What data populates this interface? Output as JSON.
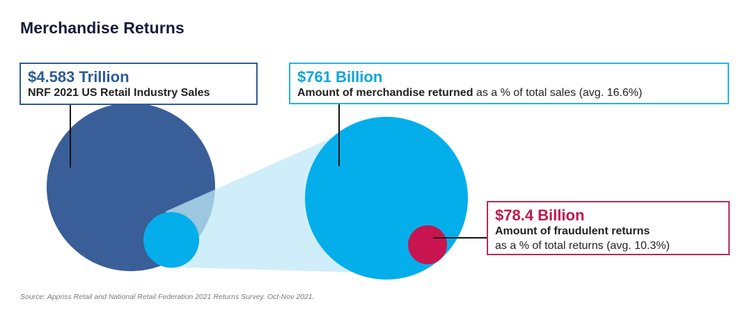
{
  "title": "Merchandise Returns",
  "total_sales": {
    "value": "$4.583 Trillion",
    "label": "NRF 2021 US Retail Industry Sales"
  },
  "returned": {
    "value": "$761 Billion",
    "label_bold": "Amount of merchandise returned",
    "label_rest": " as a % of total sales (avg. 16.6%)"
  },
  "fraudulent": {
    "value": "$78.4 Billion",
    "label_bold": "Amount of fraudulent returns",
    "label_rest": "as a % of total returns (avg. 10.3%)"
  },
  "source": "Source: Appriss Retail and National Retail Federation 2021 Returns Survey. Oct-Nov 2021.",
  "colors": {
    "dark_blue": "#3a5f98",
    "light_blue": "#04aeea",
    "funnel": "#bfe8f8",
    "crimson": "#c8154f",
    "text_dark": "#161a3a"
  }
}
